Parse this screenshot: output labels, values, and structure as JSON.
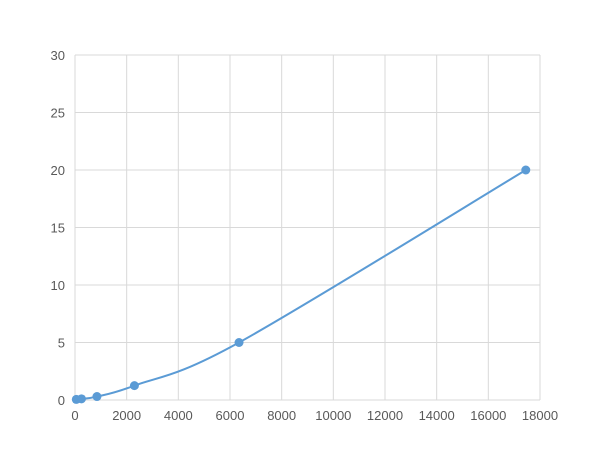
{
  "chart_data": {
    "type": "scatter",
    "title": "",
    "xlabel": "",
    "ylabel": "",
    "xlim": [
      0,
      18000
    ],
    "ylim": [
      0,
      30
    ],
    "xticks": [
      0,
      2000,
      4000,
      6000,
      8000,
      10000,
      12000,
      14000,
      16000,
      18000
    ],
    "yticks": [
      0,
      5,
      10,
      15,
      20,
      25,
      30
    ],
    "grid": true,
    "smooth_line": true,
    "series": [
      {
        "color": "#5b9bd5",
        "points": [
          {
            "x": 50,
            "y": 0.05
          },
          {
            "x": 250,
            "y": 0.1
          },
          {
            "x": 850,
            "y": 0.3
          },
          {
            "x": 2300,
            "y": 1.25
          },
          {
            "x": 6350,
            "y": 5
          },
          {
            "x": 17450,
            "y": 20
          }
        ]
      }
    ],
    "colors": {
      "grid": "#d9d9d9",
      "text": "#595959"
    }
  }
}
